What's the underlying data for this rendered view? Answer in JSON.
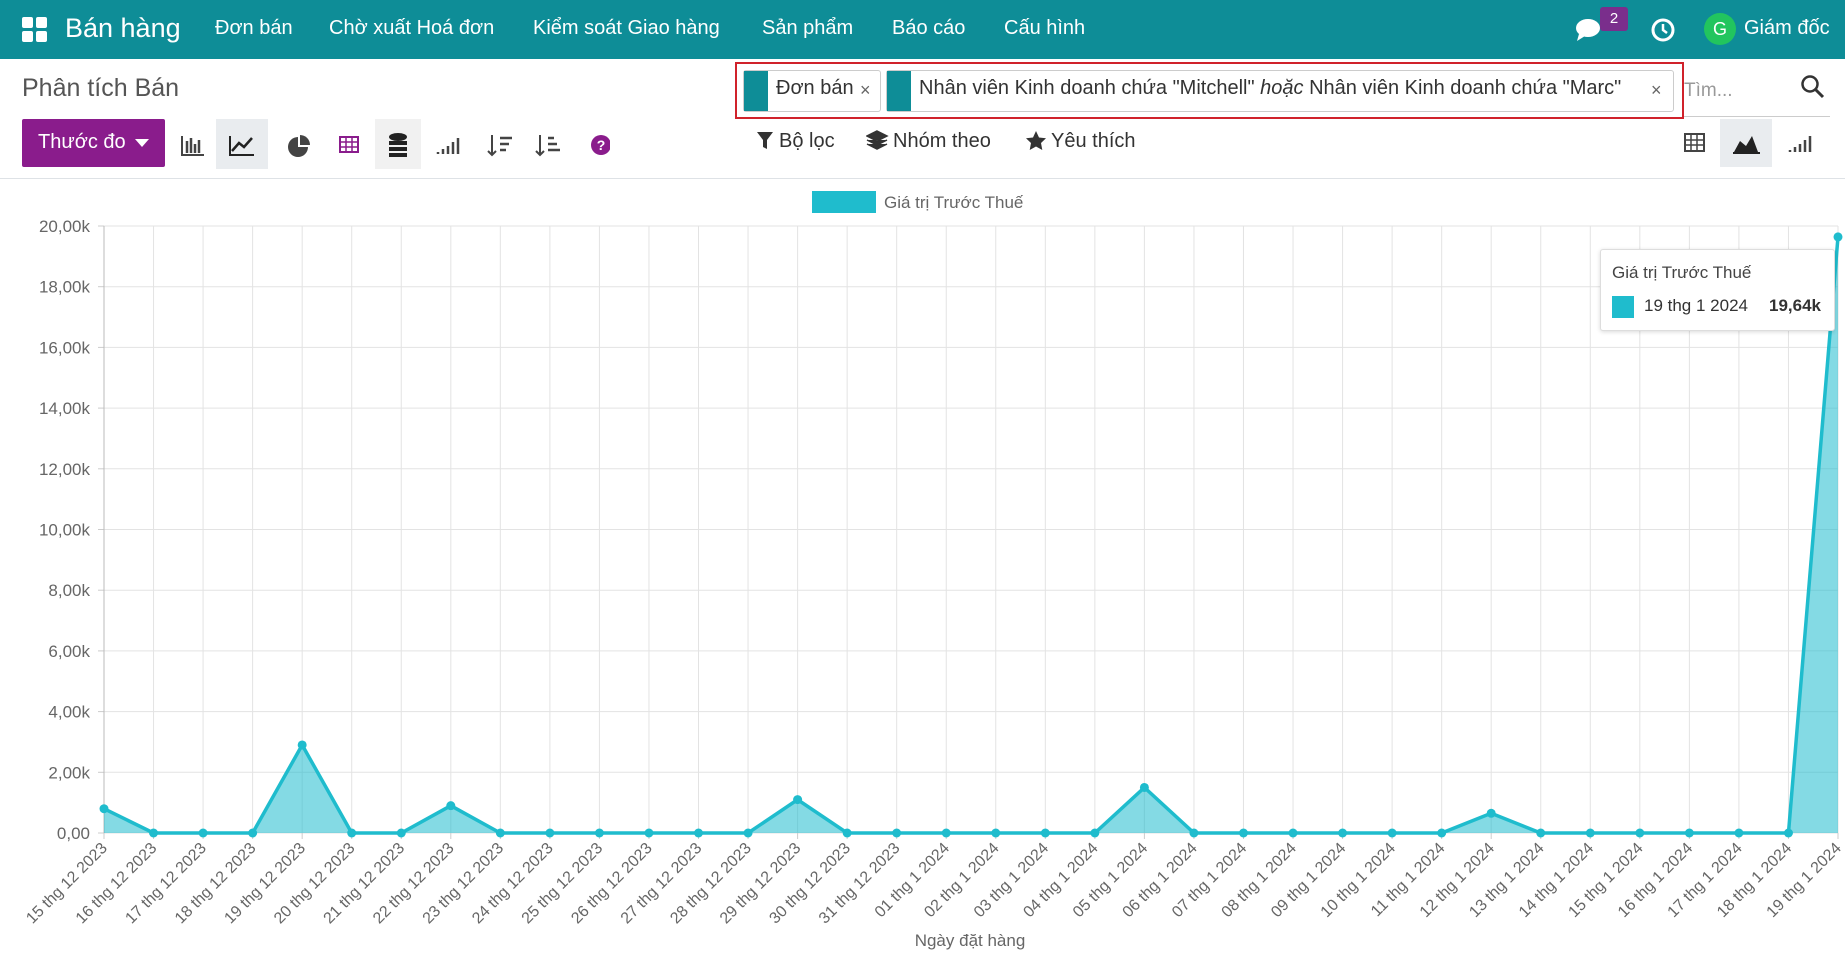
{
  "nav": {
    "app": "Bán hàng",
    "menu": [
      "Đơn bán",
      "Chờ xuất Hoá đơn",
      "Kiểm soát Giao hàng",
      "Sản phẩm",
      "Báo cáo",
      "Cấu hình"
    ],
    "badge": "2",
    "avatar": "G",
    "user": "Giám đốc"
  },
  "control_panel": {
    "title": "Phân tích Bán",
    "facets": [
      {
        "parts": [
          "Đơn bán"
        ]
      },
      {
        "parts": [
          "Nhân viên Kinh doanh chứa \"Mitchell\"",
          "hoặc",
          "Nhân viên Kinh doanh chứa \"Marc\""
        ]
      }
    ],
    "search_placeholder": "Tìm...",
    "measure_button": "Thước đo",
    "filters": [
      "Bộ lọc",
      "Nhóm theo",
      "Yêu thích"
    ]
  },
  "chart_data": {
    "type": "line",
    "area": true,
    "x_label": "Ngày đặt hàng",
    "categories": [
      "15 thg 12 2023",
      "16 thg 12 2023",
      "17 thg 12 2023",
      "18 thg 12 2023",
      "19 thg 12 2023",
      "20 thg 12 2023",
      "21 thg 12 2023",
      "22 thg 12 2023",
      "23 thg 12 2023",
      "24 thg 12 2023",
      "25 thg 12 2023",
      "26 thg 12 2023",
      "27 thg 12 2023",
      "28 thg 12 2023",
      "29 thg 12 2023",
      "30 thg 12 2023",
      "31 thg 12 2023",
      "01 thg 1 2024",
      "02 thg 1 2024",
      "03 thg 1 2024",
      "04 thg 1 2024",
      "05 thg 1 2024",
      "06 thg 1 2024",
      "07 thg 1 2024",
      "08 thg 1 2024",
      "09 thg 1 2024",
      "10 thg 1 2024",
      "11 thg 1 2024",
      "12 thg 1 2024",
      "13 thg 1 2024",
      "14 thg 1 2024",
      "15 thg 1 2024",
      "16 thg 1 2024",
      "17 thg 1 2024",
      "18 thg 1 2024",
      "19 thg 1 2024"
    ],
    "series": [
      {
        "name": "Giá trị Trước Thuế",
        "color": "#1fbccd",
        "values": [
          800,
          0,
          0,
          0,
          2900,
          0,
          0,
          900,
          0,
          0,
          0,
          0,
          0,
          0,
          1100,
          0,
          0,
          0,
          0,
          0,
          0,
          1500,
          0,
          0,
          0,
          0,
          0,
          0,
          650,
          0,
          0,
          0,
          0,
          0,
          0,
          19640
        ]
      }
    ],
    "ylim": [
      0,
      20000
    ],
    "yticks": [
      {
        "value": 0,
        "label": "0,00"
      },
      {
        "value": 2000,
        "label": "2,00k"
      },
      {
        "value": 4000,
        "label": "4,00k"
      },
      {
        "value": 6000,
        "label": "6,00k"
      },
      {
        "value": 8000,
        "label": "8,00k"
      },
      {
        "value": 10000,
        "label": "10,00k"
      },
      {
        "value": 12000,
        "label": "12,00k"
      },
      {
        "value": 14000,
        "label": "14,00k"
      },
      {
        "value": 16000,
        "label": "16,00k"
      },
      {
        "value": 18000,
        "label": "18,00k"
      },
      {
        "value": 20000,
        "label": "20,00k"
      }
    ],
    "grid": true,
    "legend": "top",
    "tooltip": {
      "title": "Giá trị Trước Thuế",
      "category": "19 thg 1 2024",
      "value": "19,64k"
    }
  }
}
